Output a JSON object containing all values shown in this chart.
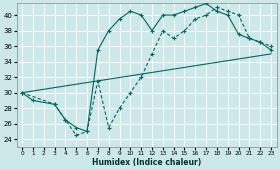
{
  "xlabel": "Humidex (Indice chaleur)",
  "bg_color": "#cce8e8",
  "grid_color": "#ffffff",
  "line_color": "#006666",
  "xlim": [
    -0.5,
    23.5
  ],
  "ylim": [
    23.0,
    41.5
  ],
  "yticks": [
    24,
    26,
    28,
    30,
    32,
    34,
    36,
    38,
    40
  ],
  "xticks": [
    0,
    1,
    2,
    3,
    4,
    5,
    6,
    7,
    8,
    9,
    10,
    11,
    12,
    13,
    14,
    15,
    16,
    17,
    18,
    19,
    20,
    21,
    22,
    23
  ],
  "line1_x": [
    0,
    1,
    3,
    4,
    5,
    6,
    7,
    8,
    9,
    10,
    11,
    12,
    13,
    14,
    15,
    16,
    17,
    18,
    19,
    20,
    21,
    22,
    23
  ],
  "line1_y": [
    30,
    29,
    28.5,
    26.5,
    25.5,
    25.0,
    35.5,
    38.0,
    39.5,
    40.5,
    40.0,
    38.0,
    40.0,
    40.0,
    40.5,
    41.0,
    41.5,
    40.5,
    40.0,
    37.5,
    37.0,
    36.5,
    35.5
  ],
  "line2_x": [
    0,
    3,
    4,
    5,
    6,
    7,
    8,
    9,
    10,
    11,
    12,
    13,
    14,
    15,
    16,
    17,
    18,
    19,
    20,
    21,
    22,
    23
  ],
  "line2_y": [
    30,
    28.5,
    26.5,
    24.5,
    25.0,
    31.5,
    25.5,
    28.0,
    30.0,
    32.0,
    35.0,
    38.0,
    37.0,
    38.0,
    39.5,
    40.0,
    41.0,
    40.5,
    40.0,
    37.0,
    36.5,
    36.0
  ],
  "line3_x": [
    0,
    23
  ],
  "line3_y": [
    30.0,
    35.0
  ]
}
